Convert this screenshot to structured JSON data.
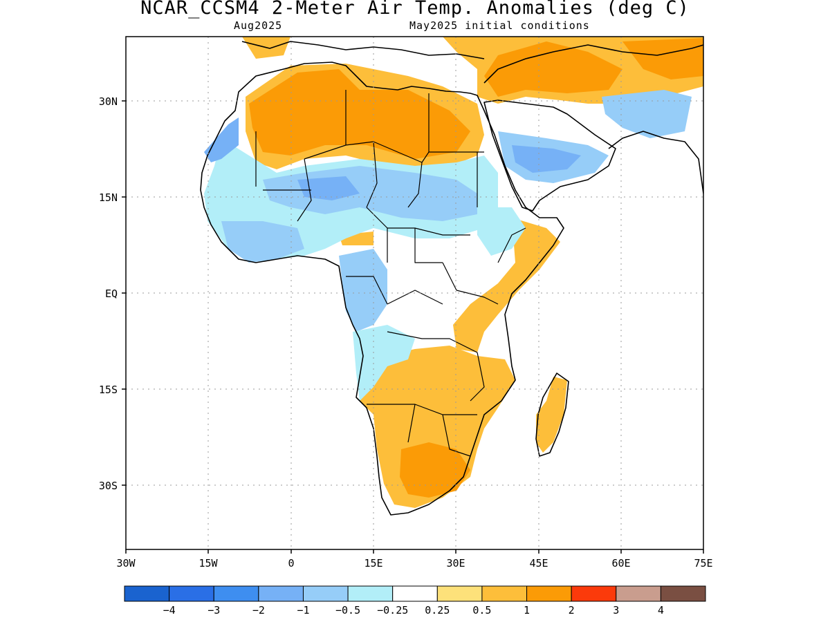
{
  "title": "NCAR_CCSM4 2-Meter Air Temp. Anomalies (deg C)",
  "subtitle_left": "Aug2025",
  "subtitle_right": "May2025 initial conditions",
  "lat_labels": [
    "30N",
    "15N",
    "EQ",
    "15S",
    "30S"
  ],
  "lon_labels": [
    "30W",
    "15W",
    "0",
    "15E",
    "30E",
    "45E",
    "60E",
    "75E"
  ],
  "colorbar": {
    "colors": [
      "#1a63cf",
      "#2a6fe6",
      "#3e8ef0",
      "#76b1f6",
      "#96cdf8",
      "#b2eef8",
      "#ffffff",
      "#fde17a",
      "#fdbe3a",
      "#fb9b06",
      "#fb3a0b",
      "#c99d8e",
      "#7a4f42"
    ],
    "labels": [
      "-4",
      "-3",
      "-2",
      "-1",
      "-0.5",
      "-0.25",
      "0.25",
      "0.5",
      "1",
      "2",
      "3",
      "4"
    ]
  },
  "legend_colors": {
    "strong_cold": "#76b1f6",
    "moderate_cold": "#96cdf8",
    "weak_cold": "#b2eef8",
    "weak_warm": "#fde17a",
    "moderate_warm": "#fdbe3a",
    "strong_warm": "#fb9b06"
  }
}
